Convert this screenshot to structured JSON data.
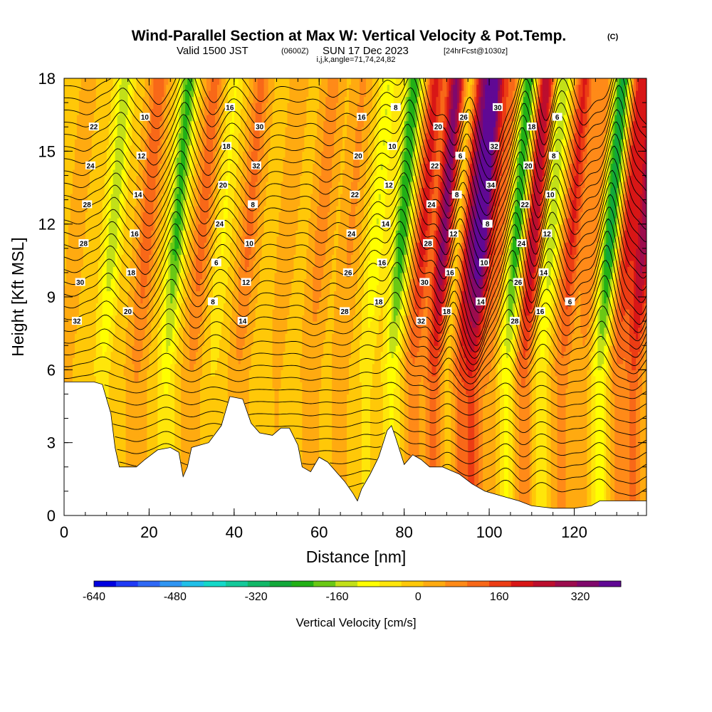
{
  "header": {
    "title": "Wind-Parallel Section at Max W: Vertical Velocity & Pot.Temp.",
    "title_mark": "(C)",
    "subtitle_prefix": "Valid 1500 JST",
    "subtitle_utc": "(0600Z)",
    "subtitle_date": "SUN 17 Dec 2023",
    "subtitle_fcst": "[24hrFcst@1030z]",
    "subtitle_ijk": "i,j,k,angle=71,74,24,82"
  },
  "chart_data": {
    "type": "heatmap",
    "xlabel": "Distance [nm]",
    "ylabel": "Height [Kft MSL]",
    "xlim": [
      0,
      137
    ],
    "ylim": [
      0,
      18
    ],
    "x_ticks": [
      0,
      20,
      40,
      60,
      80,
      100,
      120
    ],
    "x_tick_labels": [
      "0",
      "20",
      "40",
      "60",
      "80",
      "100",
      "120"
    ],
    "y_ticks": [
      0,
      3,
      6,
      9,
      12,
      15,
      18
    ],
    "y_tick_labels": [
      "0",
      "3",
      "6",
      "9",
      "12",
      "15",
      "18"
    ],
    "terrain_height_kft": [
      [
        0,
        5.5
      ],
      [
        3,
        5.5
      ],
      [
        7,
        5.5
      ],
      [
        9,
        5.4
      ],
      [
        11,
        4.2
      ],
      [
        12,
        2.8
      ],
      [
        13,
        2.0
      ],
      [
        17,
        2.0
      ],
      [
        19,
        2.3
      ],
      [
        22,
        2.7
      ],
      [
        25,
        2.8
      ],
      [
        27,
        2.6
      ],
      [
        28,
        1.6
      ],
      [
        29,
        2.0
      ],
      [
        30,
        2.8
      ],
      [
        34,
        3.0
      ],
      [
        37,
        3.7
      ],
      [
        39,
        4.9
      ],
      [
        42,
        4.8
      ],
      [
        44,
        3.8
      ],
      [
        46,
        3.4
      ],
      [
        49,
        3.3
      ],
      [
        51,
        3.6
      ],
      [
        53,
        3.6
      ],
      [
        55,
        2.9
      ],
      [
        56,
        2.0
      ],
      [
        58,
        1.8
      ],
      [
        60,
        2.4
      ],
      [
        62,
        2.2
      ],
      [
        64,
        1.8
      ],
      [
        66,
        1.4
      ],
      [
        68,
        0.9
      ],
      [
        69,
        0.6
      ],
      [
        70,
        1.1
      ],
      [
        72,
        1.7
      ],
      [
        74,
        2.4
      ],
      [
        76,
        3.5
      ],
      [
        77,
        3.7
      ],
      [
        78,
        3.2
      ],
      [
        80,
        2.1
      ],
      [
        82,
        2.5
      ],
      [
        84,
        2.3
      ],
      [
        86,
        2.0
      ],
      [
        89,
        2.0
      ],
      [
        93,
        1.7
      ],
      [
        96,
        1.3
      ],
      [
        99,
        1.0
      ],
      [
        103,
        0.8
      ],
      [
        107,
        0.6
      ],
      [
        110,
        0.4
      ],
      [
        115,
        0.3
      ],
      [
        120,
        0.3
      ],
      [
        124,
        0.4
      ],
      [
        126,
        0.6
      ],
      [
        130,
        0.6
      ],
      [
        137,
        0.6
      ]
    ],
    "vertical_velocity_cores_cm_s": [
      {
        "x": 1,
        "w": 40
      },
      {
        "x": 4,
        "w": -30
      },
      {
        "x": 9,
        "w": -150
      },
      {
        "x": 17,
        "w": 130
      },
      {
        "x": 24,
        "w": -220
      },
      {
        "x": 30,
        "w": 120
      },
      {
        "x": 35,
        "w": -80
      },
      {
        "x": 41,
        "w": 110
      },
      {
        "x": 50,
        "w": 30
      },
      {
        "x": 58,
        "w": 80
      },
      {
        "x": 65,
        "w": 60
      },
      {
        "x": 71,
        "w": -120
      },
      {
        "x": 77,
        "w": -240
      },
      {
        "x": 82,
        "w": 200
      },
      {
        "x": 87,
        "w": 340
      },
      {
        "x": 90,
        "w": -80
      },
      {
        "x": 93,
        "w": 260
      },
      {
        "x": 96,
        "w": 380
      },
      {
        "x": 100,
        "w": 120
      },
      {
        "x": 104,
        "w": -250
      },
      {
        "x": 108,
        "w": 280
      },
      {
        "x": 112,
        "w": -160
      },
      {
        "x": 117,
        "w": 190
      },
      {
        "x": 122,
        "w": 100
      },
      {
        "x": 126,
        "w": -280
      },
      {
        "x": 130,
        "w": 200
      },
      {
        "x": 134,
        "w": 300
      }
    ],
    "potential_temperature_contours_c": [
      6,
      8,
      10,
      12,
      14,
      16,
      18,
      20,
      22,
      24,
      26,
      28,
      30,
      32,
      34
    ],
    "contour_labels": [
      "32",
      "30",
      "28",
      "28",
      "24",
      "22",
      "20",
      "18",
      "16",
      "14",
      "12",
      "10",
      "8",
      "6",
      "24",
      "20",
      "18",
      "16",
      "14",
      "12",
      "10",
      "8",
      "32",
      "30",
      "28",
      "26",
      "24",
      "22",
      "20",
      "16",
      "18",
      "16",
      "14",
      "12",
      "10",
      "8",
      "32",
      "30",
      "28",
      "24",
      "22",
      "20",
      "18",
      "16",
      "12",
      "8",
      "6",
      "26",
      "14",
      "10",
      "8",
      "34",
      "32",
      "30",
      "28",
      "26",
      "24",
      "22",
      "20",
      "18",
      "16",
      "14",
      "12",
      "10",
      "8",
      "6",
      "6"
    ],
    "colorbar": {
      "label": "Vertical Velocity [cm/s]",
      "range": [
        -640,
        400
      ],
      "tick_values": [
        -640,
        -480,
        -320,
        -160,
        0,
        160,
        320
      ],
      "tick_labels": [
        "-640",
        "-480",
        "-320",
        "-160",
        "0",
        "160",
        "320"
      ],
      "colors": [
        "#0000e0",
        "#1f3af5",
        "#2f69f5",
        "#2f95f2",
        "#20bfe8",
        "#14d8c8",
        "#14c99a",
        "#11b868",
        "#12a83a",
        "#22b016",
        "#6ac814",
        "#c2e018",
        "#ffff00",
        "#ffe60a",
        "#ffc808",
        "#ffaa10",
        "#ff8a18",
        "#f86818",
        "#ec3c14",
        "#d81616",
        "#bc0e2e",
        "#9c0c4e",
        "#80086c",
        "#600894"
      ]
    }
  }
}
